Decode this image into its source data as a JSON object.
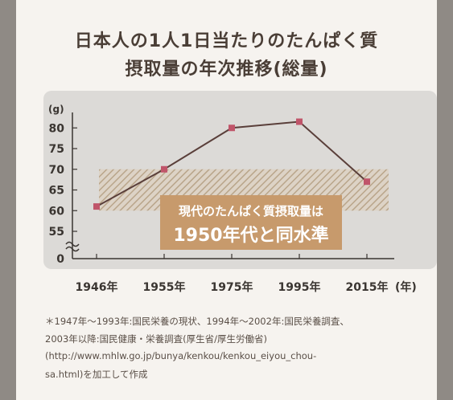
{
  "title_line1": "日本人の1人1日当たりのたんぱく質",
  "title_line2": "摂取量の年次推移(総量)",
  "callout_line1": "現代のたんぱく質摂取量は",
  "callout_line2": "1950年代と同水準",
  "notes": [
    "＊1947年～1993年:国民栄養の現状、1994年～2002年:国民栄養調査、",
    "2003年以降:国民健康・栄養調査(厚生省/厚生労働省)",
    "(http://www.mhlw.go.jp/bunya/kenkou/kenkou_eiyou_chou-",
    "sa.html)を加工して作成"
  ],
  "chart_data": {
    "type": "line",
    "ylabel": "(g)",
    "xlabel": "(年)",
    "categories": [
      "1946年",
      "1955年",
      "1975年",
      "1995年",
      "2015年"
    ],
    "values": [
      61,
      70,
      80,
      81.5,
      67
    ],
    "y_ticks": [
      "0",
      "55",
      "60",
      "65",
      "70",
      "75",
      "80"
    ],
    "ylim": [
      50,
      85
    ],
    "axis_break": true,
    "highlight_band": [
      60,
      70
    ],
    "colors": {
      "line": "#5a3f3a",
      "marker": "#c0556a",
      "band": "#b9a58a",
      "callout": "#c79a6c"
    }
  }
}
